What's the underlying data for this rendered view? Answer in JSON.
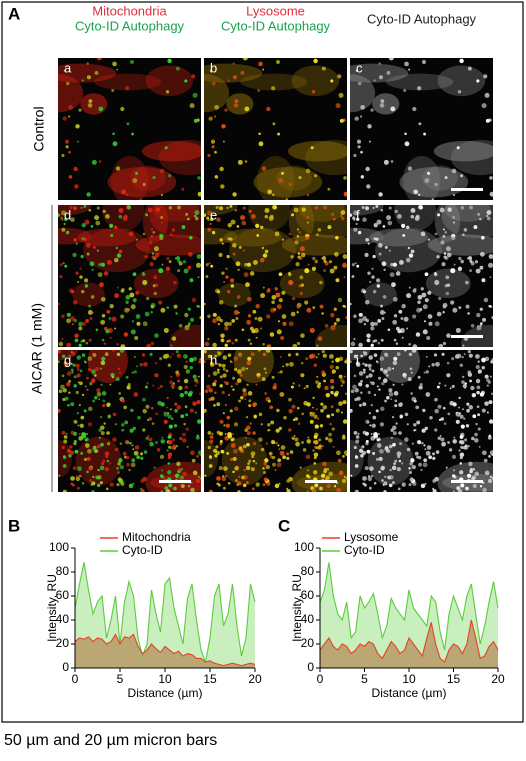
{
  "panel_a": {
    "label": "A",
    "columns": [
      [
        {
          "text": "Mitochondria",
          "color": "#e0303c"
        },
        {
          "text": "Cyto-ID Autophagy",
          "color": "#17a34a"
        }
      ],
      [
        {
          "text": "Lysosome",
          "color": "#e0303c"
        },
        {
          "text": "Cyto-ID Autophagy",
          "color": "#17a34a"
        }
      ],
      [
        {
          "text": "Cyto-ID Autophagy",
          "color": "#222222"
        }
      ]
    ],
    "rows": [
      "Control",
      "AICAR (1 mM)"
    ],
    "panels": [
      "a",
      "b",
      "c",
      "d",
      "e",
      "f",
      "g",
      "h",
      "i"
    ]
  },
  "chart_data": [
    {
      "type": "line",
      "label": "B",
      "xlabel": "Distance (µm)",
      "ylabel": "Intensity, RU",
      "x": [
        0,
        0.5,
        1,
        1.5,
        2,
        2.5,
        3,
        3.5,
        4,
        4.5,
        5,
        5.5,
        6,
        6.5,
        7,
        7.5,
        8,
        8.5,
        9,
        9.5,
        10,
        10.5,
        11,
        11.5,
        12,
        12.5,
        13,
        13.5,
        14,
        14.5,
        15,
        15.5,
        16,
        16.5,
        17,
        17.5,
        18,
        18.5,
        19,
        19.5,
        20
      ],
      "series": [
        {
          "name": "Mitochondria",
          "color": "#e8402a",
          "fill_color": "#b89a66",
          "values": [
            22,
            25,
            24,
            26,
            22,
            25,
            24,
            20,
            22,
            28,
            20,
            26,
            25,
            28,
            18,
            12,
            15,
            20,
            16,
            13,
            18,
            15,
            12,
            14,
            10,
            12,
            11,
            8,
            8,
            5,
            6,
            4,
            3,
            2,
            3,
            4,
            3,
            2,
            3,
            4,
            3
          ]
        },
        {
          "name": "Cyto-ID",
          "color": "#5ccc3c",
          "fill_color": "#c9efbf",
          "values": [
            50,
            70,
            88,
            65,
            45,
            55,
            60,
            25,
            40,
            60,
            20,
            55,
            72,
            60,
            25,
            10,
            20,
            65,
            45,
            30,
            70,
            75,
            50,
            35,
            20,
            58,
            70,
            40,
            15,
            5,
            25,
            60,
            70,
            35,
            45,
            70,
            35,
            10,
            25,
            70,
            55
          ]
        }
      ],
      "xlim": [
        0,
        20
      ],
      "xticks": [
        0,
        5,
        10,
        15,
        20
      ],
      "ylim": [
        0,
        100
      ],
      "yticks": [
        0,
        20,
        40,
        60,
        80,
        100
      ]
    },
    {
      "type": "line",
      "label": "C",
      "xlabel": "Distance (µm)",
      "ylabel": "Intensity, RU",
      "x": [
        0,
        0.5,
        1,
        1.5,
        2,
        2.5,
        3,
        3.5,
        4,
        4.5,
        5,
        5.5,
        6,
        6.5,
        7,
        7.5,
        8,
        8.5,
        9,
        9.5,
        10,
        10.5,
        11,
        11.5,
        12,
        12.5,
        13,
        13.5,
        14,
        14.5,
        15,
        15.5,
        16,
        16.5,
        17,
        17.5,
        18,
        18.5,
        19,
        19.5,
        20
      ],
      "series": [
        {
          "name": "Lysosome",
          "color": "#e8402a",
          "fill_color": "#b89a66",
          "values": [
            15,
            20,
            25,
            18,
            15,
            20,
            18,
            12,
            15,
            20,
            18,
            22,
            20,
            12,
            8,
            15,
            22,
            18,
            12,
            15,
            25,
            20,
            15,
            10,
            25,
            38,
            20,
            8,
            5,
            15,
            20,
            18,
            12,
            20,
            40,
            25,
            8,
            10,
            18,
            22,
            15
          ]
        },
        {
          "name": "Cyto-ID",
          "color": "#5ccc3c",
          "fill_color": "#c9efbf",
          "values": [
            55,
            65,
            88,
            60,
            45,
            40,
            55,
            25,
            30,
            60,
            50,
            55,
            62,
            45,
            25,
            35,
            58,
            50,
            45,
            40,
            65,
            50,
            45,
            40,
            35,
            60,
            55,
            30,
            15,
            45,
            60,
            50,
            40,
            60,
            70,
            45,
            20,
            35,
            55,
            72,
            50
          ]
        }
      ],
      "xlim": [
        0,
        20
      ],
      "xticks": [
        0,
        5,
        10,
        15,
        20
      ],
      "ylim": [
        0,
        100
      ],
      "yticks": [
        0,
        20,
        40,
        60,
        80,
        100
      ]
    }
  ],
  "caption": "50 µm and 20 µm micron bars"
}
